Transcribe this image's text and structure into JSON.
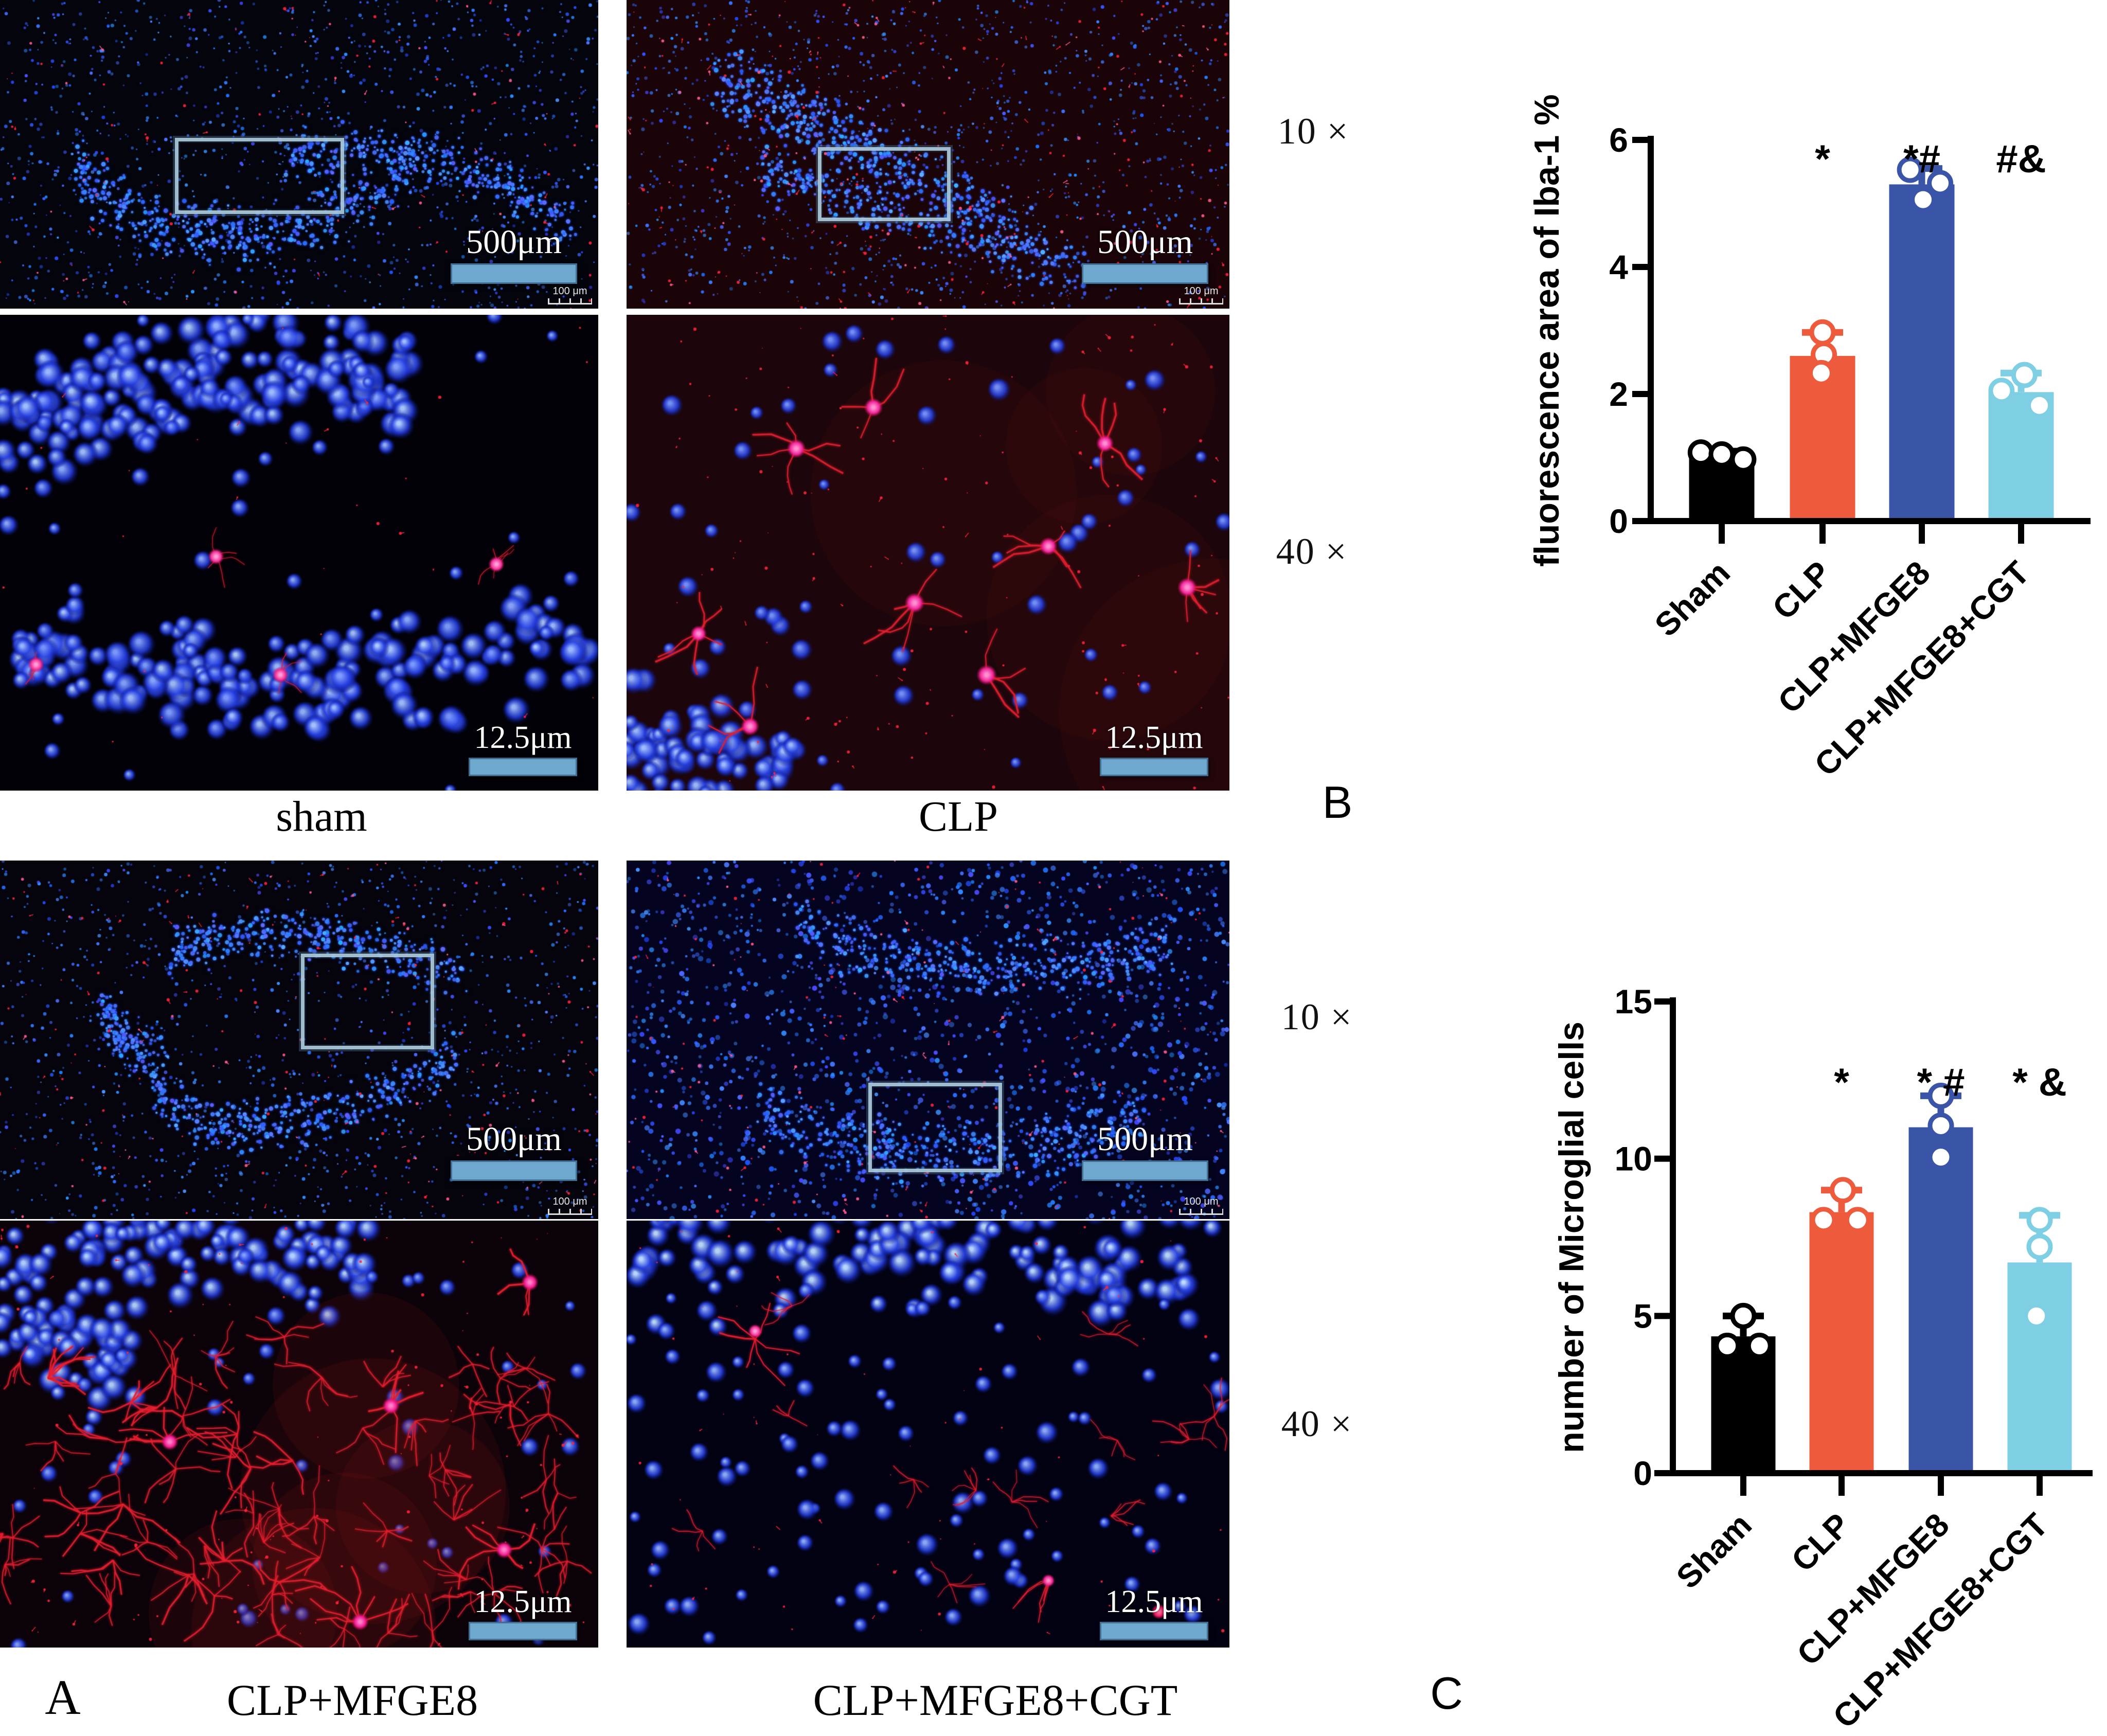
{
  "figure": {
    "panel_letters": {
      "a": "A",
      "b": "B",
      "c": "C"
    },
    "magnifications": {
      "ten": "10 ×",
      "forty": "40 ×"
    },
    "captions": {
      "sham": "sham",
      "clp": "CLP",
      "mfge8": "CLP+MFGE8",
      "cgt": "CLP+MFGE8+CGT"
    },
    "scale_labels": {
      "low": "500μm",
      "low_mini": "100 μm",
      "high": "12.5μm"
    },
    "colors": {
      "dapi_blue": "#2b3fff",
      "iba1_red": "#ff2040",
      "soma_pink": "#ff3f9e",
      "scalebar_blue": "#6FA8CF",
      "bar_black": "#000000",
      "bar_orange": "#EE5A3C",
      "bar_blue": "#3A55A7",
      "bar_cyan": "#7ECFE4"
    }
  },
  "chart_data": [
    {
      "id": "B",
      "type": "bar",
      "title": "",
      "xlabel": "",
      "ylabel": "fluorescence area of Iba-1 %",
      "categories": [
        "Sham",
        "CLP",
        "CLP+MFGE8",
        "CLP+MFGE8+CGT"
      ],
      "values": [
        1.05,
        2.6,
        5.3,
        2.03
      ],
      "errors_up": [
        0.05,
        0.37,
        0.25,
        0.3
      ],
      "points": [
        [
          [
            -0.32,
            1.08
          ],
          [
            0.0,
            1.05
          ],
          [
            0.33,
            0.97
          ]
        ],
        [
          [
            0.0,
            2.97
          ],
          [
            0.02,
            2.62
          ],
          [
            -0.02,
            2.33
          ]
        ],
        [
          [
            -0.18,
            5.53
          ],
          [
            0.28,
            5.32
          ],
          [
            0.02,
            5.06
          ]
        ],
        [
          [
            0.05,
            2.3
          ],
          [
            -0.3,
            2.05
          ],
          [
            0.28,
            1.82
          ]
        ]
      ],
      "annotations": [
        "",
        "*",
        "*#",
        "#&"
      ],
      "bar_colors": [
        "#000000",
        "#EE5A3C",
        "#3A55A7",
        "#7ECFE4"
      ],
      "ylim": [
        0,
        6
      ],
      "yticks": [
        0,
        2,
        4,
        6
      ],
      "grid": false,
      "legend": "none"
    },
    {
      "id": "C",
      "type": "bar",
      "title": "",
      "xlabel": "",
      "ylabel": "number of Microglial cells",
      "categories": [
        "Sham",
        "CLP",
        "CLP+MFGE8",
        "CLP+MFGE8+CGT"
      ],
      "values": [
        4.35,
        8.3,
        11.0,
        6.7
      ],
      "errors_up": [
        0.65,
        0.7,
        1.0,
        1.5
      ],
      "points": [
        [
          [
            -0.25,
            4.05
          ],
          [
            0.25,
            4.05
          ],
          [
            0.0,
            5.0
          ]
        ],
        [
          [
            -0.28,
            8.05
          ],
          [
            0.25,
            8.05
          ],
          [
            0.02,
            9.0
          ]
        ],
        [
          [
            0.0,
            12.0
          ],
          [
            0.0,
            11.05
          ],
          [
            0.0,
            10.05
          ]
        ],
        [
          [
            0.0,
            8.05
          ],
          [
            0.0,
            7.2
          ],
          [
            -0.05,
            5.0
          ]
        ]
      ],
      "annotations": [
        "",
        "*",
        "* #",
        "* &"
      ],
      "bar_colors": [
        "#000000",
        "#EE5A3C",
        "#3A55A7",
        "#7ECFE4"
      ],
      "ylim": [
        0,
        15
      ],
      "yticks": [
        0,
        5,
        10,
        15
      ],
      "grid": false,
      "legend": "none"
    }
  ]
}
